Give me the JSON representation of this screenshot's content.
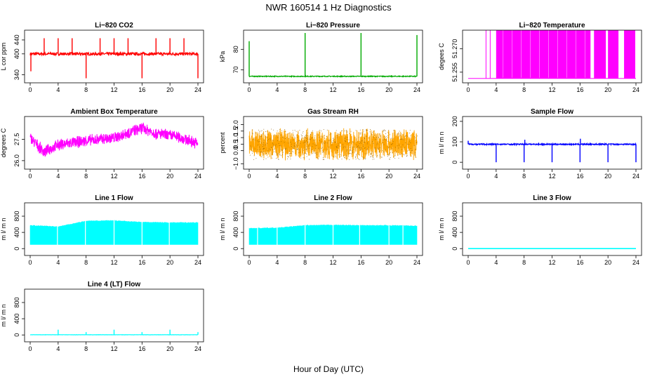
{
  "page": {
    "title": "NWR  160514  1 Hz Diagnostics",
    "xlabel": "Hour of Day (UTC)"
  },
  "chart_data": [
    {
      "id": "co2",
      "title": "Li−820 CO2",
      "type": "line",
      "ylabel": "L cor ppm",
      "color": "#ff0000",
      "x_ticks": [
        "0",
        "4",
        "8",
        "12",
        "16",
        "20",
        "24"
      ],
      "xlim": [
        0,
        24
      ],
      "y_ticks": [
        "340",
        "400",
        "440"
      ],
      "ylim": [
        325,
        460
      ],
      "baseline": 400,
      "noise": 4,
      "events": [
        [
          0.1,
          350
        ],
        [
          2,
          445
        ],
        [
          4,
          445
        ],
        [
          6,
          445
        ],
        [
          8,
          330
        ],
        [
          10,
          445
        ],
        [
          12,
          445
        ],
        [
          14,
          445
        ],
        [
          16,
          330
        ],
        [
          18,
          445
        ],
        [
          20,
          445
        ],
        [
          22,
          445
        ],
        [
          24,
          330
        ]
      ]
    },
    {
      "id": "pressure",
      "title": "Li−820 Pressure",
      "type": "line",
      "ylabel": "kPa",
      "color": "#00aa00",
      "x_ticks": [
        "0",
        "4",
        "8",
        "12",
        "16",
        "20",
        "24"
      ],
      "xlim": [
        0,
        24
      ],
      "y_ticks": [
        "70",
        "80"
      ],
      "ylim": [
        65,
        88
      ],
      "baseline": 66.8,
      "noise": 0.2,
      "events": [
        [
          0,
          84
        ],
        [
          8,
          88
        ],
        [
          16,
          88
        ],
        [
          24,
          87
        ]
      ]
    },
    {
      "id": "li820-temp",
      "title": "Li−820 Temperature",
      "type": "line",
      "ylabel": "degees C",
      "color": "#ff00ff",
      "x_ticks": [
        "0",
        "4",
        "8",
        "12",
        "16",
        "20",
        "24"
      ],
      "xlim": [
        0,
        24
      ],
      "y_ticks": [
        "51.255",
        "51.270"
      ],
      "ylim": [
        51.25,
        51.28
      ],
      "baseline": 51.251,
      "noise": 0,
      "band": [
        [
          2.5,
          2.6
        ],
        [
          3.1,
          3.2
        ],
        [
          4,
          17.5
        ],
        [
          18,
          19.7
        ],
        [
          20,
          21.5
        ],
        [
          22.3,
          23.9
        ]
      ]
    },
    {
      "id": "ambient-temp",
      "title": "Ambient Box Temperature",
      "type": "line",
      "ylabel": "degrees C",
      "color": "#ff00ff",
      "x_ticks": [
        "0",
        "4",
        "8",
        "12",
        "16",
        "20",
        "24"
      ],
      "xlim": [
        0,
        24
      ],
      "y_ticks": [
        "26.0",
        "27.5"
      ],
      "ylim": [
        25.6,
        28.9
      ],
      "trend": [
        [
          0,
          27.6
        ],
        [
          2,
          26.6
        ],
        [
          4,
          27.1
        ],
        [
          8,
          27.4
        ],
        [
          12,
          27.6
        ],
        [
          16,
          28.3
        ],
        [
          18,
          27.9
        ],
        [
          21,
          27.7
        ],
        [
          24,
          27.2
        ]
      ],
      "noise": 0.45
    },
    {
      "id": "rh",
      "title": "Gas Stream RH",
      "type": "scatter",
      "ylabel": "percent",
      "color": "#ffa500",
      "x_ticks": [
        "0",
        "4",
        "8",
        "12",
        "16",
        "20",
        "24"
      ],
      "xlim": [
        0,
        24
      ],
      "y_ticks": [
        "−1.0",
        "0.0",
        "0.5",
        "1.0",
        "1.5",
        "2.0"
      ],
      "ylim": [
        -1.2,
        2.4
      ],
      "baseline": 0.5,
      "noise": 1.3
    },
    {
      "id": "sample-flow",
      "title": "Sample Flow",
      "type": "line",
      "ylabel": "m l/ m n",
      "color": "#0000ff",
      "x_ticks": [
        "0",
        "4",
        "8",
        "12",
        "16",
        "20",
        "24"
      ],
      "xlim": [
        0,
        24
      ],
      "y_ticks": [
        "0",
        "100",
        "200"
      ],
      "ylim": [
        -20,
        210
      ],
      "baseline": 88,
      "noise": 3,
      "events": [
        [
          0,
          105
        ],
        [
          4,
          0
        ],
        [
          8,
          0
        ],
        [
          8.1,
          110
        ],
        [
          12,
          0
        ],
        [
          16,
          0
        ],
        [
          16.05,
          115
        ],
        [
          20,
          0
        ],
        [
          24,
          0
        ]
      ]
    },
    {
      "id": "line1-flow",
      "title": "Line 1 Flow",
      "type": "area",
      "ylabel": "m l/ m n",
      "color": "#00ffff",
      "x_ticks": [
        "0",
        "4",
        "8",
        "12",
        "16",
        "20",
        "24"
      ],
      "xlim": [
        0,
        24
      ],
      "y_ticks": [
        "0",
        "400",
        "800"
      ],
      "ylim": [
        -100,
        1060
      ],
      "bottom": 100,
      "tops": [
        [
          0,
          570
        ],
        [
          4,
          540
        ],
        [
          6,
          610
        ],
        [
          8,
          680
        ],
        [
          12,
          690
        ],
        [
          16,
          650
        ],
        [
          20,
          640
        ],
        [
          24,
          640
        ]
      ],
      "gaps": [
        3.9,
        7.9,
        12,
        16,
        19.9
      ]
    },
    {
      "id": "line2-flow",
      "title": "Line 2 Flow",
      "type": "area",
      "ylabel": "m l/ m n",
      "color": "#00ffff",
      "x_ticks": [
        "0",
        "4",
        "8",
        "12",
        "16",
        "20",
        "24"
      ],
      "xlim": [
        0,
        24
      ],
      "y_ticks": [
        "0",
        "400",
        "800"
      ],
      "ylim": [
        -100,
        1060
      ],
      "bottom": 100,
      "tops": [
        [
          0,
          500
        ],
        [
          4,
          510
        ],
        [
          6,
          540
        ],
        [
          8,
          570
        ],
        [
          12,
          580
        ],
        [
          16,
          570
        ],
        [
          20,
          570
        ],
        [
          24,
          560
        ]
      ],
      "gaps": [
        1.2,
        4,
        8,
        12,
        15.8,
        20,
        22
      ]
    },
    {
      "id": "line3-flow",
      "title": "Line 3 Flow",
      "type": "line",
      "ylabel": "m l/ m n",
      "color": "#00ffff",
      "x_ticks": [
        "0",
        "4",
        "8",
        "12",
        "16",
        "20",
        "24"
      ],
      "xlim": [
        0,
        24
      ],
      "y_ticks": [
        "0",
        "400",
        "800"
      ],
      "ylim": [
        -100,
        1060
      ],
      "baseline": 0,
      "noise": 0
    },
    {
      "id": "line4-flow",
      "title": "Line 4 (LT) Flow",
      "type": "line",
      "ylabel": "m l/ m n",
      "color": "#00ffff",
      "x_ticks": [
        "0",
        "4",
        "8",
        "12",
        "16",
        "20",
        "24"
      ],
      "xlim": [
        0,
        24
      ],
      "y_ticks": [
        "0",
        "400",
        "800"
      ],
      "ylim": [
        -100,
        1060
      ],
      "baseline": 5,
      "noise": 3,
      "events": [
        [
          4,
          130
        ],
        [
          8,
          70
        ],
        [
          12,
          130
        ],
        [
          16,
          70
        ],
        [
          20,
          130
        ],
        [
          24,
          70
        ]
      ]
    }
  ]
}
